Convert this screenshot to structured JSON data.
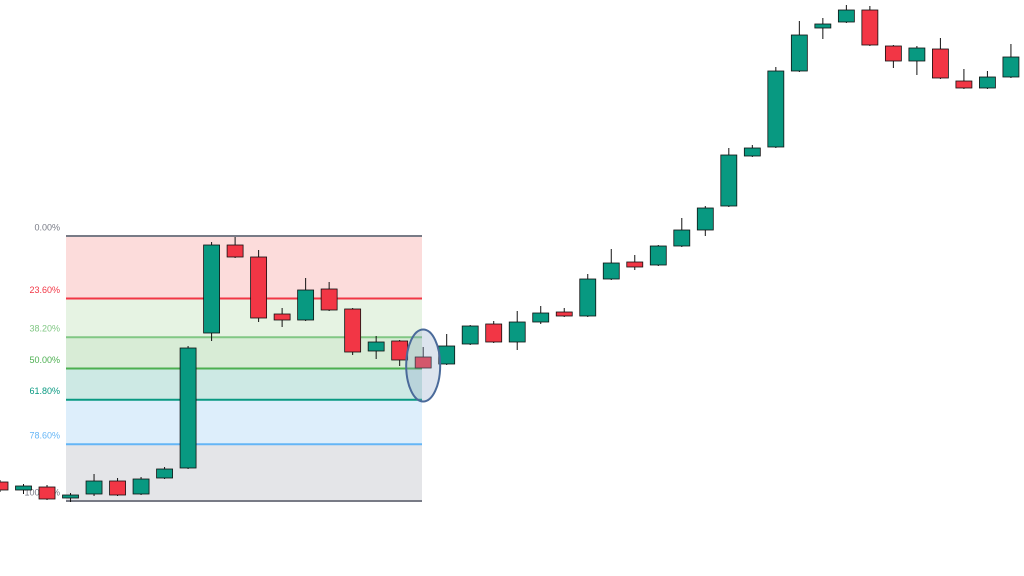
{
  "chart_data": {
    "type": "candlestick",
    "ylim": [
      0,
      576
    ],
    "up_color": "#089981",
    "down_color": "#f23645",
    "series": {
      "open": [
        94,
        86,
        89,
        78,
        82,
        95,
        82,
        98,
        108,
        243,
        331,
        319,
        262,
        256,
        287,
        267,
        225,
        235,
        219,
        212,
        232,
        252,
        234,
        254,
        264,
        260,
        297,
        314,
        311,
        330,
        346,
        370,
        420,
        429,
        505,
        548,
        554,
        566,
        530,
        515,
        527,
        495,
        488,
        499
      ],
      "high": [
        96,
        92,
        91,
        83,
        102,
        98,
        99,
        109,
        230,
        334,
        339,
        326,
        268,
        298,
        294,
        268,
        240,
        236,
        229,
        242,
        251,
        255,
        265,
        270,
        268,
        302,
        327,
        321,
        331,
        358,
        370,
        428,
        431,
        509,
        555,
        558,
        571,
        570,
        531,
        530,
        538,
        507,
        505,
        532
      ],
      "low": [
        84,
        82,
        76,
        74,
        80,
        80,
        81,
        97,
        107,
        235,
        318,
        254,
        249,
        255,
        265,
        221,
        217,
        210,
        208,
        211,
        231,
        233,
        226,
        252,
        259,
        259,
        296,
        306,
        310,
        329,
        340,
        369,
        419,
        428,
        504,
        537,
        553,
        530,
        508,
        501,
        497,
        487,
        487,
        498
      ],
      "close": [
        86,
        90,
        77,
        81,
        95,
        81,
        97,
        107,
        228,
        331,
        319,
        258,
        256,
        286,
        266,
        224,
        234,
        216,
        208,
        230,
        250,
        234,
        254,
        263,
        260,
        297,
        313,
        309,
        330,
        346,
        368,
        421,
        428,
        505,
        541,
        552,
        566,
        531,
        515,
        528,
        498,
        488,
        499,
        519
      ]
    },
    "highlight_index": 18,
    "fib_range": [
      75,
      340
    ],
    "fib_levels": [
      {
        "value": 0,
        "label": "0.00%"
      },
      {
        "value": 23.6,
        "label": "23.60%"
      },
      {
        "value": 38.2,
        "label": "38.20%"
      },
      {
        "value": 50,
        "label": "50.00%"
      },
      {
        "value": 61.8,
        "label": "61.80%"
      },
      {
        "value": 78.6,
        "label": "78.60%"
      },
      {
        "value": 100,
        "label": "100.00%"
      }
    ],
    "fib_colors": [
      "#787b86",
      "#f23645",
      "#81c784",
      "#4caf50",
      "#089981",
      "#64b5f6",
      "#787b86"
    ],
    "fib_band_colors": [
      "#fcdcdb",
      "#e6f3e3",
      "#d8ecd6",
      "#cde9e4",
      "#ddeefb",
      "#e4e5e8"
    ]
  }
}
